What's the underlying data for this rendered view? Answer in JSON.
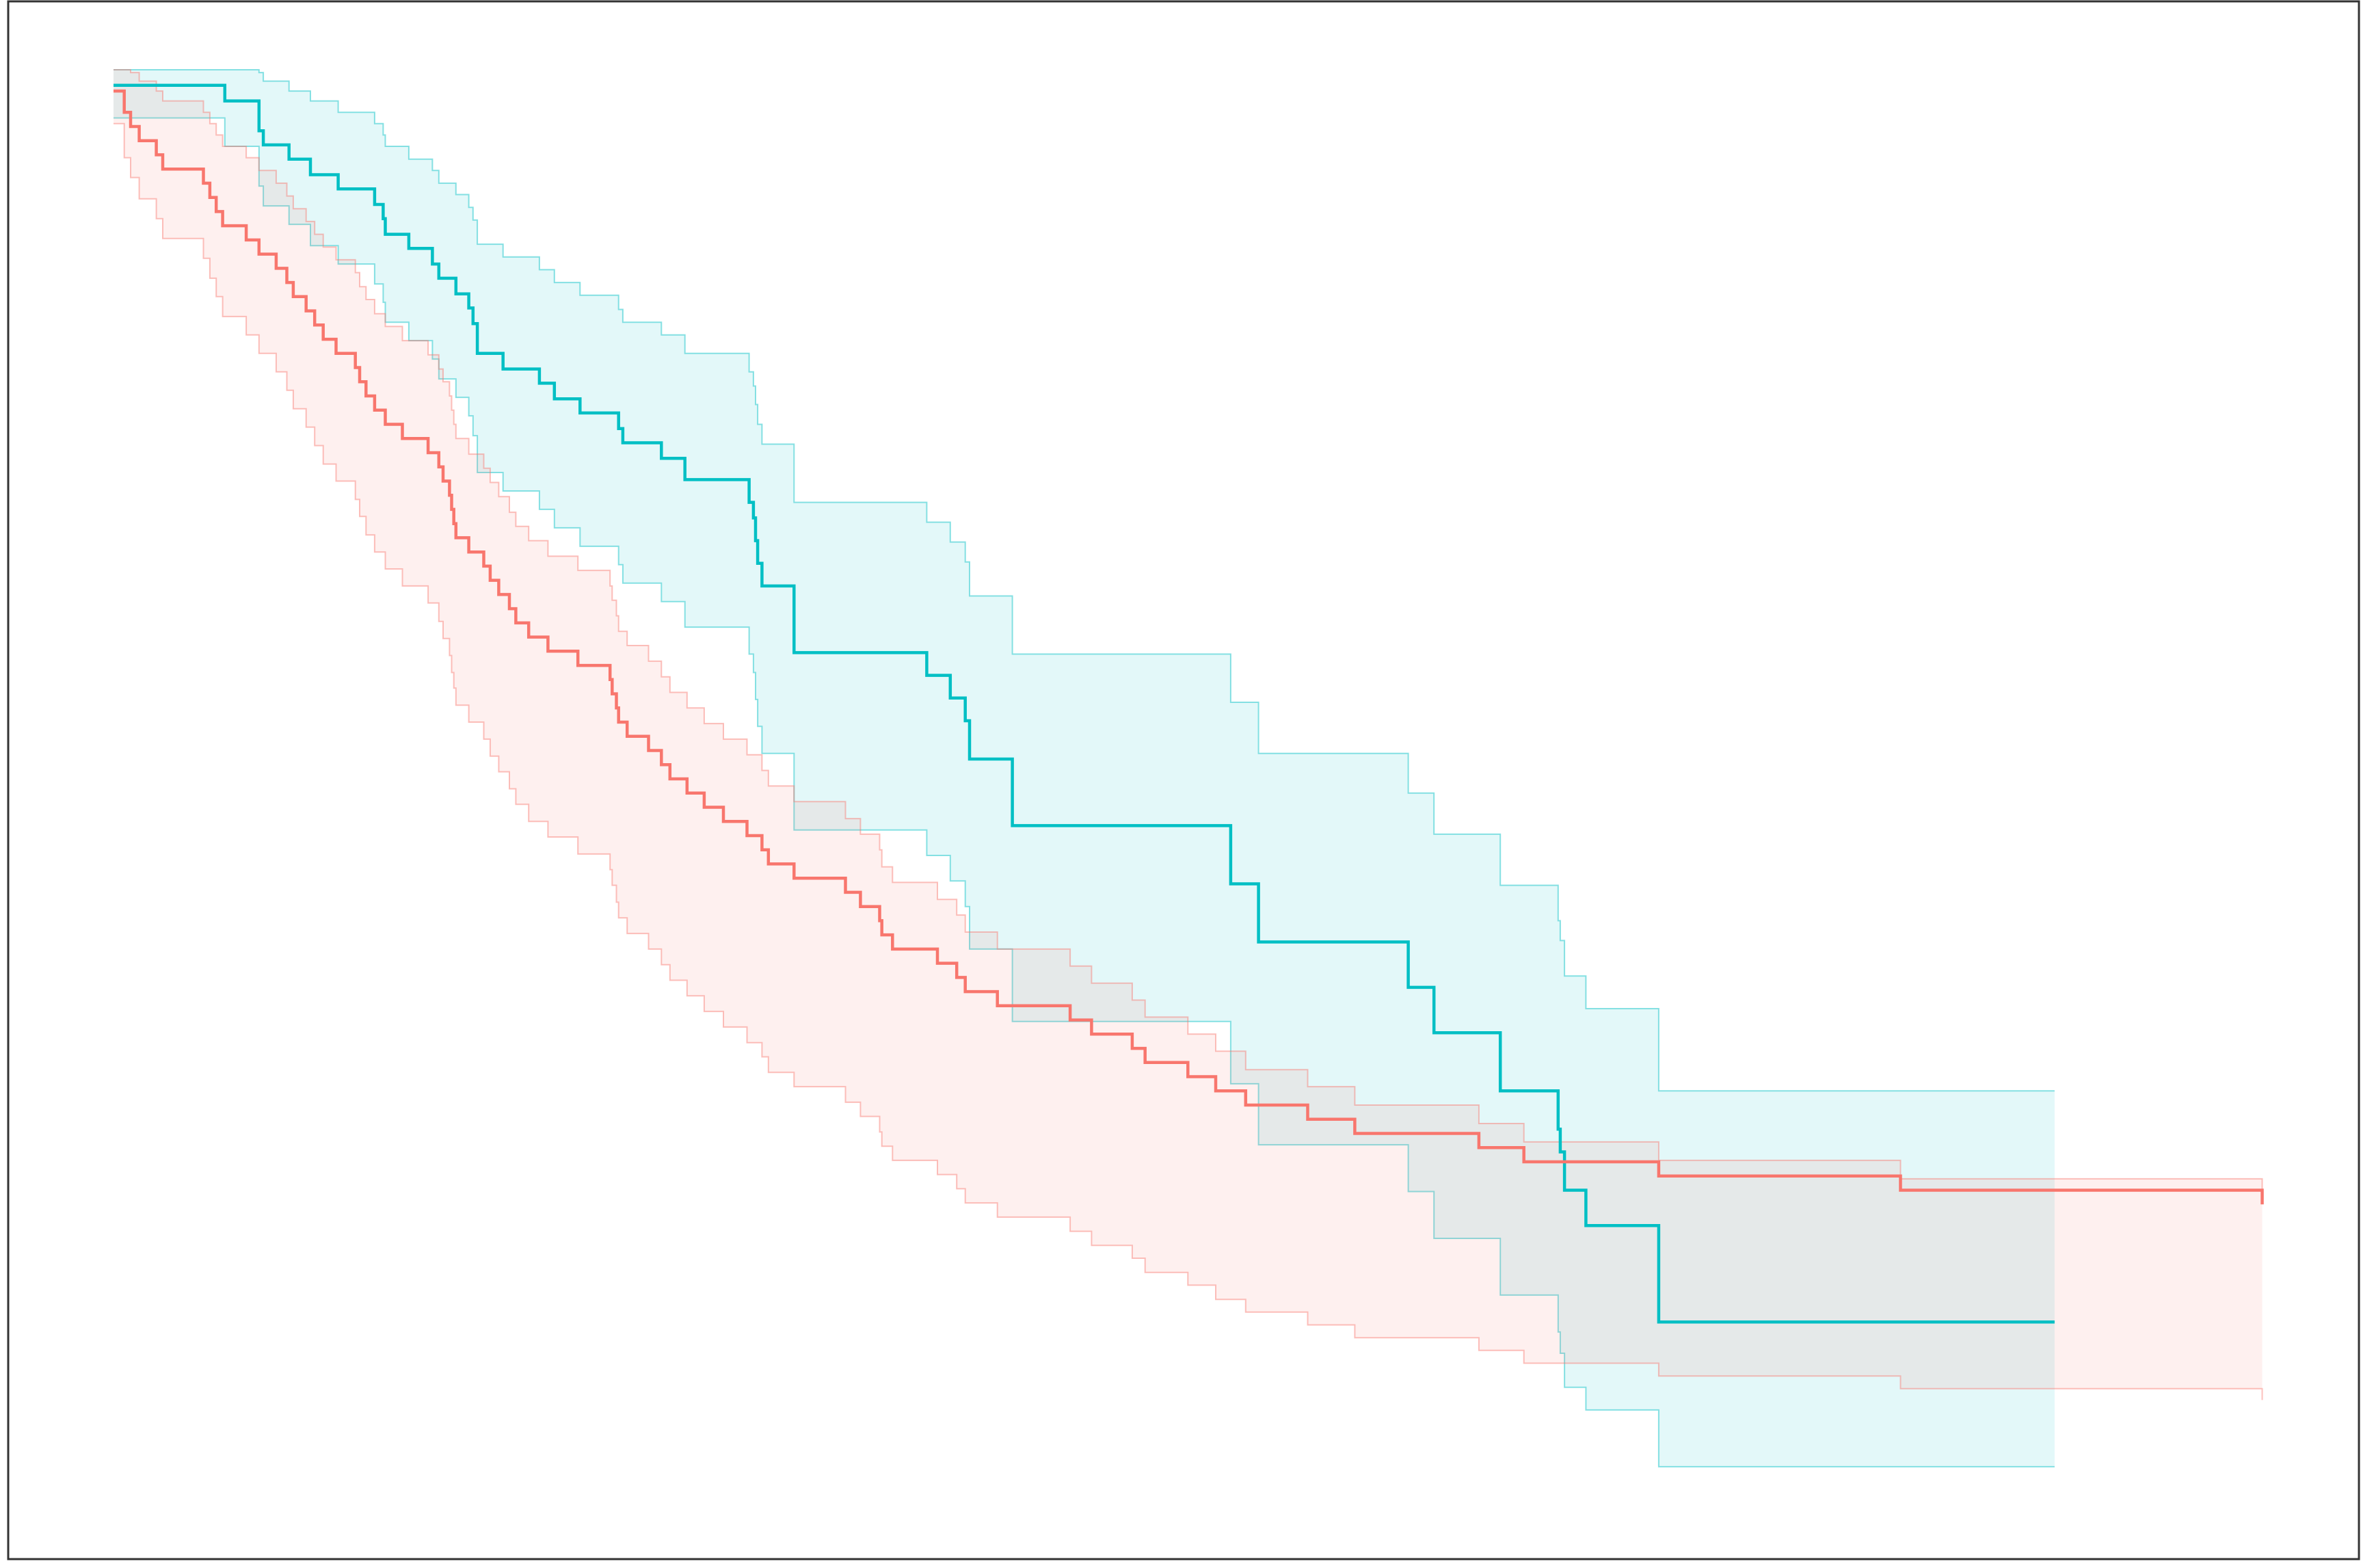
{
  "chart_data": {
    "type": "line",
    "title": "",
    "xlabel": "",
    "ylabel": "",
    "grid": false,
    "legend": "none",
    "xlim": [
      0,
      1000
    ],
    "ylim": [
      0,
      1
    ],
    "series": [
      {
        "color": "#00BFC4",
        "x": [
          0,
          50,
          52,
          68,
          70,
          82,
          92,
          105,
          122,
          126,
          127,
          138,
          149,
          152,
          160,
          166,
          168,
          170,
          182,
          199,
          206,
          218,
          236,
          238,
          256,
          267,
          297,
          299,
          300,
          301,
          303,
          318,
          380,
          391,
          398,
          400,
          420,
          522,
          535,
          605,
          617,
          648,
          675,
          676,
          678,
          688,
          722,
          752,
          907
        ],
        "y": [
          0.989,
          0.989,
          0.978,
          0.957,
          0.947,
          0.937,
          0.926,
          0.916,
          0.905,
          0.895,
          0.884,
          0.874,
          0.863,
          0.853,
          0.842,
          0.832,
          0.821,
          0.8,
          0.789,
          0.779,
          0.768,
          0.758,
          0.747,
          0.737,
          0.726,
          0.711,
          0.695,
          0.684,
          0.668,
          0.652,
          0.636,
          0.589,
          0.573,
          0.557,
          0.541,
          0.514,
          0.467,
          0.426,
          0.385,
          0.353,
          0.321,
          0.28,
          0.253,
          0.237,
          0.21,
          0.185,
          0.117,
          0.117,
          0.117
        ],
        "lower": [
          0.966,
          0.966,
          0.946,
          0.918,
          0.904,
          0.891,
          0.876,
          0.863,
          0.849,
          0.836,
          0.822,
          0.809,
          0.796,
          0.782,
          0.769,
          0.756,
          0.742,
          0.716,
          0.703,
          0.69,
          0.677,
          0.664,
          0.651,
          0.638,
          0.625,
          0.607,
          0.588,
          0.575,
          0.556,
          0.537,
          0.518,
          0.464,
          0.446,
          0.428,
          0.41,
          0.38,
          0.329,
          0.285,
          0.242,
          0.209,
          0.176,
          0.136,
          0.11,
          0.095,
          0.071,
          0.055,
          0.015,
          0.015,
          0.015
        ],
        "upper": [
          1.0,
          1.0,
          1.0,
          0.998,
          0.992,
          0.985,
          0.978,
          0.97,
          0.962,
          0.954,
          0.946,
          0.937,
          0.929,
          0.92,
          0.912,
          0.903,
          0.894,
          0.877,
          0.868,
          0.859,
          0.85,
          0.841,
          0.831,
          0.822,
          0.813,
          0.8,
          0.787,
          0.777,
          0.764,
          0.75,
          0.736,
          0.695,
          0.681,
          0.667,
          0.653,
          0.629,
          0.588,
          0.554,
          0.518,
          0.49,
          0.461,
          0.425,
          0.4,
          0.386,
          0.361,
          0.338,
          0.28,
          0.28,
          0.28
        ]
      },
      {
        "color": "#F8766D",
        "x": [
          0,
          5,
          8,
          12,
          20,
          23,
          42,
          45,
          48,
          51,
          62,
          68,
          76,
          81,
          84,
          90,
          94,
          98,
          104,
          113,
          115,
          118,
          122,
          127,
          135,
          147,
          152,
          154,
          157,
          158,
          159,
          160,
          166,
          173,
          176,
          180,
          185,
          188,
          194,
          203,
          217,
          232,
          233,
          235,
          236,
          240,
          250,
          256,
          260,
          268,
          276,
          285,
          296,
          303,
          306,
          318,
          342,
          349,
          358,
          359,
          364,
          385,
          394,
          398,
          413,
          447,
          457,
          476,
          482,
          502,
          515,
          529,
          558,
          580,
          638,
          659,
          722,
          835,
          1004
        ],
        "y": [
          0.985,
          0.97,
          0.96,
          0.95,
          0.94,
          0.93,
          0.92,
          0.91,
          0.9,
          0.89,
          0.88,
          0.87,
          0.86,
          0.85,
          0.84,
          0.83,
          0.82,
          0.81,
          0.8,
          0.79,
          0.78,
          0.77,
          0.76,
          0.75,
          0.74,
          0.73,
          0.72,
          0.71,
          0.7,
          0.69,
          0.68,
          0.67,
          0.66,
          0.65,
          0.64,
          0.63,
          0.62,
          0.61,
          0.6,
          0.59,
          0.58,
          0.57,
          0.56,
          0.55,
          0.54,
          0.53,
          0.52,
          0.51,
          0.5,
          0.49,
          0.48,
          0.47,
          0.46,
          0.45,
          0.44,
          0.43,
          0.42,
          0.41,
          0.4,
          0.39,
          0.38,
          0.37,
          0.36,
          0.35,
          0.34,
          0.33,
          0.32,
          0.31,
          0.3,
          0.29,
          0.28,
          0.27,
          0.26,
          0.25,
          0.24,
          0.23,
          0.22,
          0.21,
          0.2
        ],
        "lower": [
          0.962,
          0.938,
          0.924,
          0.909,
          0.895,
          0.881,
          0.867,
          0.853,
          0.84,
          0.826,
          0.813,
          0.8,
          0.787,
          0.774,
          0.761,
          0.748,
          0.735,
          0.722,
          0.71,
          0.697,
          0.685,
          0.672,
          0.66,
          0.648,
          0.636,
          0.624,
          0.611,
          0.599,
          0.587,
          0.575,
          0.564,
          0.552,
          0.54,
          0.528,
          0.516,
          0.505,
          0.493,
          0.482,
          0.47,
          0.459,
          0.447,
          0.436,
          0.425,
          0.413,
          0.402,
          0.391,
          0.38,
          0.369,
          0.358,
          0.347,
          0.336,
          0.325,
          0.314,
          0.304,
          0.293,
          0.283,
          0.272,
          0.262,
          0.251,
          0.241,
          0.231,
          0.221,
          0.211,
          0.201,
          0.191,
          0.181,
          0.171,
          0.162,
          0.152,
          0.143,
          0.133,
          0.124,
          0.115,
          0.106,
          0.097,
          0.088,
          0.079,
          0.07,
          0.062
        ],
        "upper": [
          1.0,
          1.0,
          0.998,
          0.992,
          0.985,
          0.978,
          0.97,
          0.962,
          0.954,
          0.946,
          0.938,
          0.929,
          0.92,
          0.911,
          0.902,
          0.893,
          0.884,
          0.875,
          0.866,
          0.857,
          0.847,
          0.838,
          0.828,
          0.819,
          0.809,
          0.799,
          0.789,
          0.78,
          0.77,
          0.76,
          0.75,
          0.74,
          0.729,
          0.719,
          0.709,
          0.699,
          0.688,
          0.678,
          0.668,
          0.657,
          0.647,
          0.636,
          0.626,
          0.615,
          0.604,
          0.594,
          0.583,
          0.572,
          0.561,
          0.55,
          0.539,
          0.528,
          0.517,
          0.506,
          0.495,
          0.484,
          0.472,
          0.461,
          0.45,
          0.438,
          0.427,
          0.415,
          0.404,
          0.392,
          0.38,
          0.368,
          0.356,
          0.344,
          0.332,
          0.32,
          0.308,
          0.295,
          0.283,
          0.27,
          0.257,
          0.244,
          0.231,
          0.218,
          0.204
        ]
      }
    ]
  }
}
